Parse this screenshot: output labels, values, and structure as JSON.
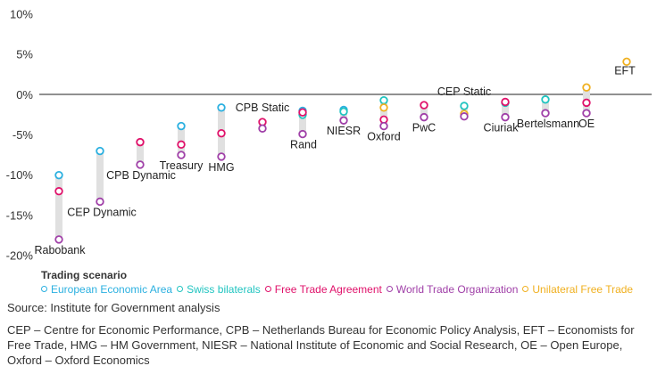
{
  "chart_data": {
    "type": "scatter",
    "title": "",
    "xlabel": "",
    "ylabel": "",
    "ylim": [
      -20,
      10
    ],
    "yticks": [
      "10%",
      "5%",
      "0%",
      "-5%",
      "-10%",
      "-15%",
      "-20%"
    ],
    "grid": false,
    "legend_position": "bottom",
    "legend_title": "Trading scenario",
    "series": [
      {
        "name": "European Economic Area",
        "color": "#2bb0e0"
      },
      {
        "name": "Swiss bilaterals",
        "color": "#20c4c0"
      },
      {
        "name": "Free Trade Agreement",
        "color": "#e0116a"
      },
      {
        "name": "World Trade Organization",
        "color": "#a040a8"
      },
      {
        "name": "Unilateral Free Trade",
        "color": "#f0b020"
      }
    ],
    "studies": [
      {
        "label": "Rabobank",
        "values": {
          "European Economic Area": -10.0,
          "Free Trade Agreement": -12.0,
          "World Trade Organization": -18.0
        }
      },
      {
        "label": "CEP Dynamic",
        "values": {
          "European Economic Area": -7.0,
          "World Trade Organization": -13.3
        }
      },
      {
        "label": "CPB Dynamic",
        "values": {
          "Free Trade Agreement": -5.9,
          "World Trade Organization": -8.7
        }
      },
      {
        "label": "Treasury",
        "values": {
          "European Economic Area": -3.9,
          "Free Trade Agreement": -6.2,
          "World Trade Organization": -7.5
        }
      },
      {
        "label": "HMG",
        "values": {
          "European Economic Area": -1.6,
          "Free Trade Agreement": -4.8,
          "World Trade Organization": -7.7
        }
      },
      {
        "label": "CPB Static",
        "values": {
          "Free Trade Agreement": -3.4,
          "World Trade Organization": -4.2
        }
      },
      {
        "label": "Rand",
        "values": {
          "European Economic Area": -2.0,
          "Swiss bilaterals": -2.5,
          "Free Trade Agreement": -2.2,
          "World Trade Organization": -4.9
        }
      },
      {
        "label": "NIESR",
        "values": {
          "European Economic Area": -1.9,
          "Swiss bilaterals": -2.1,
          "World Trade Organization": -3.2
        }
      },
      {
        "label": "Oxford",
        "values": {
          "Swiss bilaterals": -0.7,
          "Unilateral Free Trade": -1.6,
          "Free Trade Agreement": -3.1,
          "World Trade Organization": -3.9
        }
      },
      {
        "label": "PwC",
        "values": {
          "Free Trade Agreement": -1.3,
          "World Trade Organization": -2.8
        }
      },
      {
        "label": "CEP Static",
        "values": {
          "Swiss bilaterals": -1.4,
          "Unilateral Free Trade": -2.4,
          "World Trade Organization": -2.7
        }
      },
      {
        "label": "Ciuriak",
        "values": {
          "Swiss bilaterals": -1.0,
          "Free Trade Agreement": -0.9,
          "World Trade Organization": -2.8
        }
      },
      {
        "label": "Bertelsmann",
        "values": {
          "Swiss bilaterals": -0.6,
          "World Trade Organization": -2.3
        }
      },
      {
        "label": "OE",
        "values": {
          "Unilateral Free Trade": 0.9,
          "Free Trade Agreement": -1.0,
          "World Trade Organization": -2.3
        }
      },
      {
        "label": "EFT",
        "values": {
          "Unilateral Free Trade": 4.1
        }
      }
    ]
  },
  "footer": {
    "source": "Source: Institute for Government analysis",
    "abbreviations": "CEP – Centre for Economic Performance, CPB – Netherlands Bureau for Economic Policy Analysis, EFT – Economists for Free Trade, HMG – HM Government, NIESR – National Institute of Economic and Social Research, OE – Open Europe, Oxford – Oxford Economics"
  }
}
